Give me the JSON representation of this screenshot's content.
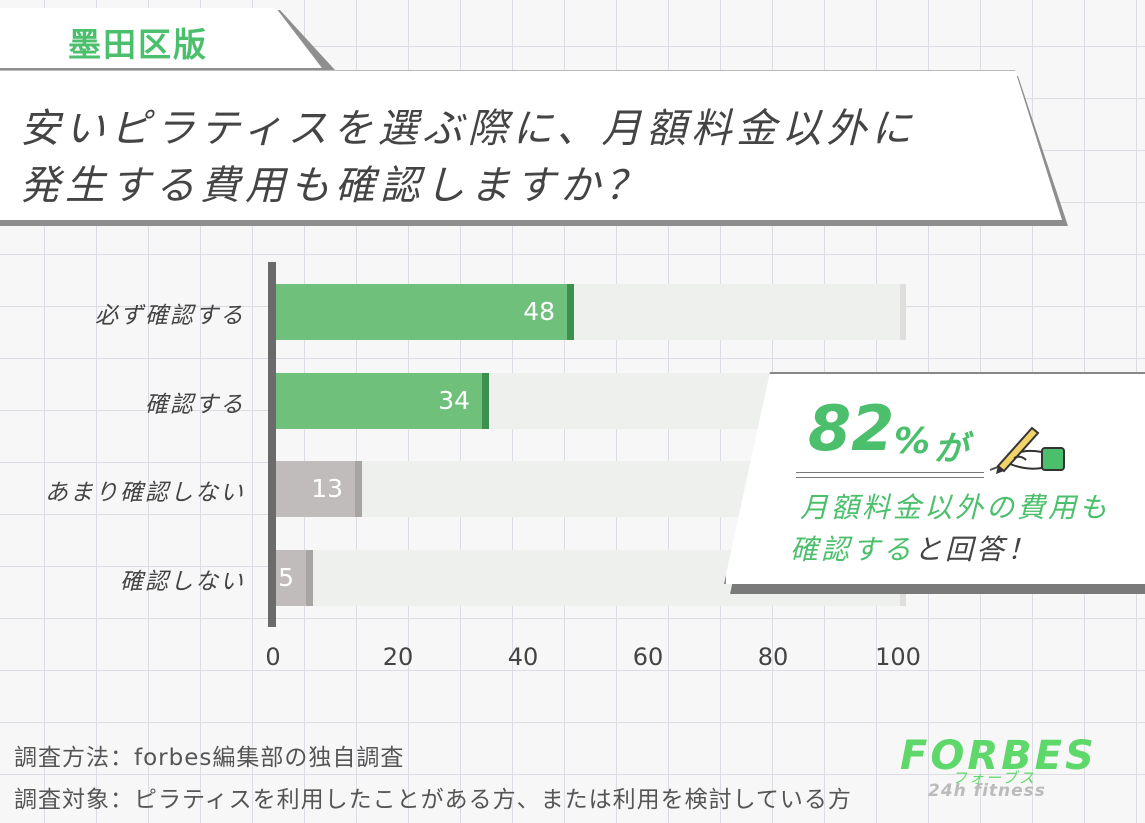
{
  "region_tag": "墨田区版",
  "title": {
    "line1": "安いピラティスを選ぶ際に、月額料金以外に",
    "line2": "発生する費用も確認しますか？"
  },
  "chart_data": {
    "type": "bar",
    "orientation": "horizontal",
    "categories": [
      "必ず確認する",
      "確認する",
      "あまり確認しない",
      "確認しない"
    ],
    "values": [
      48,
      34,
      13,
      5
    ],
    "xlim": [
      0,
      100
    ],
    "xticks": [
      "0",
      "20",
      "40",
      "60",
      "80",
      "100"
    ],
    "colors": {
      "positive": "#6ec07b",
      "positive_cap": "#3d8f4e",
      "negative": "#c0bcbc",
      "negative_cap": "#a8a4a4",
      "track": "#eef0ee"
    }
  },
  "callout": {
    "number": "82",
    "percent": "%",
    "suffix": "が",
    "line1": "月額料金以外の費用も",
    "line2_highlight": "確認する",
    "line2_rest": "と回答！",
    "icon": "hand-writing-icon"
  },
  "notes": {
    "method": "調査方法：forbes編集部の独自調査",
    "target": "調査対象：ピラティスを利用したことがある方、または利用を検討している方"
  },
  "logo": {
    "main": "FORBES",
    "kana": "フォーブス",
    "sub": "24h fitness"
  }
}
